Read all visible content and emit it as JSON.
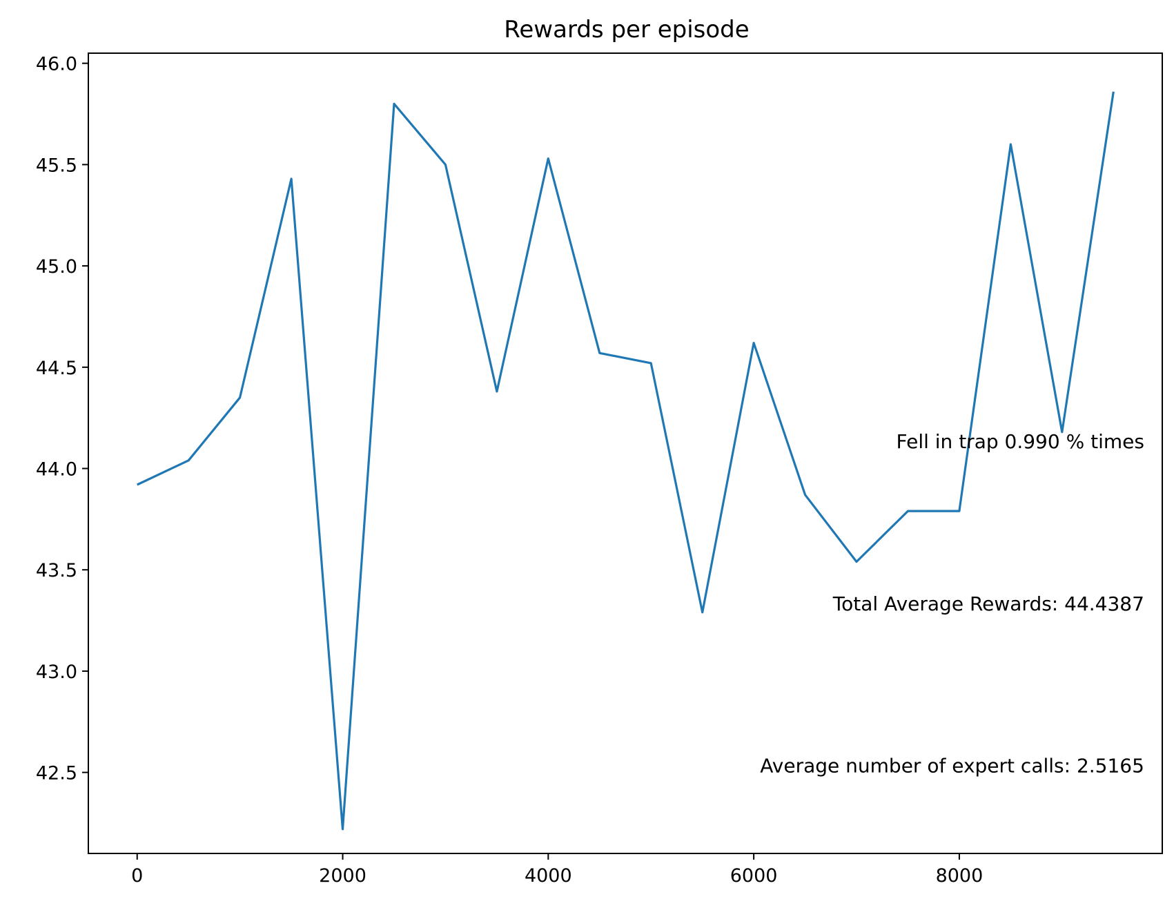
{
  "chart_data": {
    "type": "line",
    "title": "Rewards per episode",
    "xlabel": "",
    "ylabel": "",
    "xlim": [
      -475,
      9975
    ],
    "ylim": [
      42.1,
      46.05
    ],
    "x_ticks": [
      0,
      2000,
      4000,
      6000,
      8000
    ],
    "x_tick_labels": [
      "0",
      "2000",
      "4000",
      "6000",
      "8000"
    ],
    "y_ticks": [
      42.5,
      43.0,
      43.5,
      44.0,
      44.5,
      45.0,
      45.5,
      46.0
    ],
    "y_tick_labels": [
      "42.5",
      "43.0",
      "43.5",
      "44.0",
      "44.5",
      "45.0",
      "45.5",
      "46.0"
    ],
    "grid": false,
    "series": [
      {
        "color": "#1f77b4",
        "x": [
          0,
          500,
          1000,
          1500,
          2000,
          2500,
          3000,
          3500,
          4000,
          4500,
          5000,
          5500,
          6000,
          6500,
          7000,
          7500,
          8000,
          8500,
          9000,
          9500
        ],
        "values": [
          43.92,
          44.04,
          44.35,
          45.43,
          42.22,
          45.8,
          45.5,
          44.38,
          45.53,
          44.57,
          44.52,
          43.29,
          44.62,
          43.87,
          43.54,
          43.79,
          43.79,
          45.6,
          44.18,
          45.86
        ]
      }
    ],
    "annotations": [
      {
        "text": "Fell in trap 0.990 % times",
        "x": 9800,
        "y": 44.1
      },
      {
        "text": "Total Average Rewards: 44.4387",
        "x": 9800,
        "y": 43.3
      },
      {
        "text": "Average number of expert calls: 2.5165",
        "x": 9800,
        "y": 42.5
      }
    ]
  }
}
